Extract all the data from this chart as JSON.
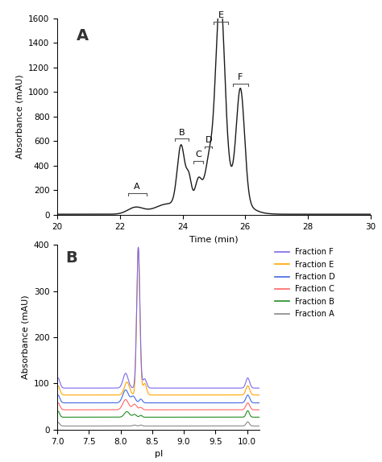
{
  "panel_A_label": "A",
  "panel_B_label": "B",
  "A_xlabel": "Time (min)",
  "A_ylabel": "Absorbance (mAU)",
  "A_xlim": [
    20,
    30
  ],
  "A_ylim": [
    0,
    1600
  ],
  "A_yticks": [
    0,
    200,
    400,
    600,
    800,
    1000,
    1200,
    1400,
    1600
  ],
  "A_xticks": [
    20,
    22,
    24,
    26,
    28,
    30
  ],
  "B_xlabel": "pI",
  "B_ylabel": "Absorbance (mAU)",
  "B_xlim": [
    7.0,
    10.2
  ],
  "B_ylim": [
    0,
    400
  ],
  "B_yticks": [
    0,
    100,
    200,
    300,
    400
  ],
  "B_xticks": [
    7.0,
    7.5,
    8.0,
    8.5,
    9.0,
    9.5,
    10.0
  ],
  "fraction_colors": {
    "F": "#7b68ee",
    "E": "#ffa500",
    "D": "#4169e1",
    "C": "#ff6666",
    "B": "#228b22",
    "A": "#888888"
  },
  "fraction_labels": [
    "Fraction F",
    "Fraction E",
    "Fraction D",
    "Fraction C",
    "Fraction B",
    "Fraction A"
  ],
  "fraction_keys": [
    "F",
    "E",
    "D",
    "C",
    "B",
    "A"
  ],
  "background_color": "#ffffff",
  "line_color": "#1a1a1a",
  "bracket_color": "#555555"
}
